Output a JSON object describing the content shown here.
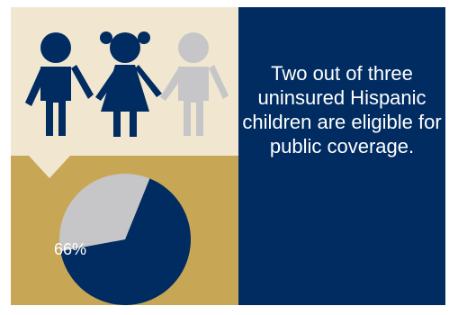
{
  "headline": "Two out of three uninsured Hispanic children are eligible for public coverage.",
  "colors": {
    "navy": "#002c62",
    "cream": "#f1e7d1",
    "gold": "#c7a756",
    "gray": "#c6c6c8",
    "white": "#ffffff"
  },
  "icons": [
    "boy-figure-icon",
    "girl-figure-icon",
    "child-figure-icon"
  ],
  "chart_data": {
    "type": "pie",
    "title": "",
    "slices": [
      {
        "label": "66%",
        "value": 66,
        "color": "#002c62"
      },
      {
        "label": "",
        "value": 34,
        "color": "#c6c6c8"
      }
    ]
  }
}
